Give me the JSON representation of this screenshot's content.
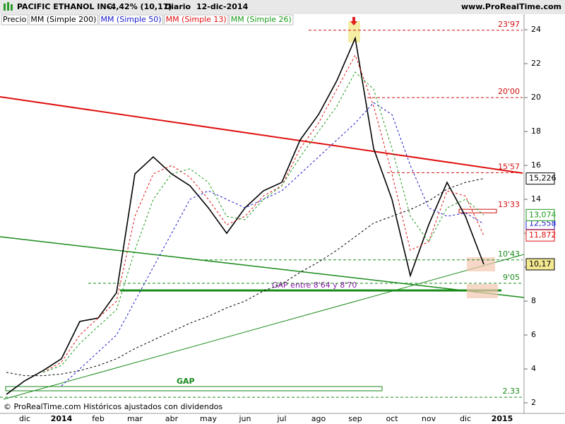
{
  "header": {
    "title": "PACIFIC ETHANOL INC.",
    "change": "-4,42% (10,17)",
    "period": "Diario",
    "date": "12-dic-2014",
    "site": "www.ProRealTime.com"
  },
  "footer": "© ProRealTime.com  Históricos ajustados con dividendos",
  "chart_data": {
    "type": "line",
    "categories": [
      null,
      "dic",
      null,
      "2014",
      null,
      "feb",
      null,
      "mar",
      null,
      "abr",
      null,
      "may",
      null,
      "jun",
      null,
      "jul",
      null,
      "ago",
      null,
      "sep",
      null,
      "oct",
      null,
      "nov",
      null,
      "dic",
      null,
      "2015"
    ],
    "ylim": [
      1.17,
      24.92
    ],
    "yticks": [
      2,
      4,
      6,
      8,
      10,
      12,
      14,
      16,
      18,
      20,
      22,
      24
    ],
    "grid": false,
    "series": [
      {
        "name": "Precio",
        "color": "#000000",
        "last_label": {
          "value": 10.17,
          "label": "10,17"
        },
        "values": [
          2.5,
          3.3,
          3.9,
          4.6,
          6.8,
          7.0,
          8.5,
          15.5,
          16.5,
          15.5,
          14.8,
          13.5,
          12.0,
          13.5,
          14.5,
          15.0,
          17.5,
          19.0,
          21.0,
          23.5,
          17.0,
          14.0,
          9.5,
          12.5,
          15.0,
          13.0,
          10.17,
          null
        ]
      },
      {
        "name": "MM (Simple 200)",
        "color": "#000000",
        "last_label": {
          "value": 15.226,
          "label": "15,226"
        },
        "values": [
          3.8,
          3.6,
          3.6,
          3.7,
          3.9,
          4.2,
          4.6,
          5.2,
          5.7,
          6.2,
          6.7,
          7.1,
          7.6,
          8.0,
          8.6,
          9.0,
          9.7,
          10.3,
          11.0,
          11.8,
          12.6,
          13.0,
          13.4,
          13.9,
          14.6,
          15.0,
          15.226,
          null
        ]
      },
      {
        "name": "MM (Simple 50)",
        "color": "#1a1acc",
        "last_label": {
          "value": 12.558,
          "label": "12,558"
        },
        "values": [
          null,
          null,
          null,
          3.0,
          4.0,
          5.0,
          6.0,
          8.0,
          10.0,
          12.0,
          14.0,
          14.5,
          14.0,
          13.5,
          14.0,
          14.5,
          15.5,
          16.5,
          17.5,
          18.5,
          19.7,
          19.0,
          16.0,
          13.5,
          13.0,
          13.2,
          12.558,
          null
        ]
      },
      {
        "name": "MM (Simple 13)",
        "color": "#e01010",
        "last_label": {
          "value": 11.872,
          "label": "11,872"
        },
        "values": [
          null,
          null,
          3.8,
          4.4,
          6.0,
          7.0,
          8.0,
          13.0,
          15.5,
          16.0,
          15.3,
          14.0,
          12.5,
          13.0,
          14.2,
          14.8,
          17.0,
          18.5,
          20.5,
          22.5,
          19.5,
          15.5,
          11.0,
          11.5,
          14.5,
          14.2,
          11.872,
          null
        ]
      },
      {
        "name": "MM (Simple 26)",
        "color": "#1a9a1a",
        "last_label": {
          "value": 13.074,
          "label": "13,074"
        },
        "values": [
          null,
          null,
          3.8,
          4.2,
          5.5,
          6.5,
          7.5,
          11.0,
          14.0,
          15.5,
          15.8,
          15.0,
          13.0,
          12.8,
          14.0,
          14.8,
          16.5,
          18.0,
          19.5,
          21.5,
          20.5,
          17.0,
          13.0,
          11.5,
          13.5,
          14.0,
          13.074,
          null
        ]
      }
    ],
    "levels": [
      {
        "value": 23.97,
        "label": "23'97",
        "color": "#d01010"
      },
      {
        "value": 20.0,
        "label": "20'00",
        "color": "#d01010"
      },
      {
        "value": 15.57,
        "label": "15'57",
        "color": "#d01010"
      },
      {
        "value": 13.33,
        "label": "13'33",
        "color": "#d01010"
      },
      {
        "value": 10.43,
        "label": "10'43",
        "color": "#1a8a1a"
      },
      {
        "value": 9.05,
        "label": "9'05",
        "color": "#1a8a1a"
      },
      {
        "value": 2.33,
        "label": "2.33",
        "color": "#1a8a1a"
      }
    ],
    "annotations": {
      "gap_small": "GAP entre 8'64 y 8'70",
      "gap_big": "GAP"
    }
  }
}
